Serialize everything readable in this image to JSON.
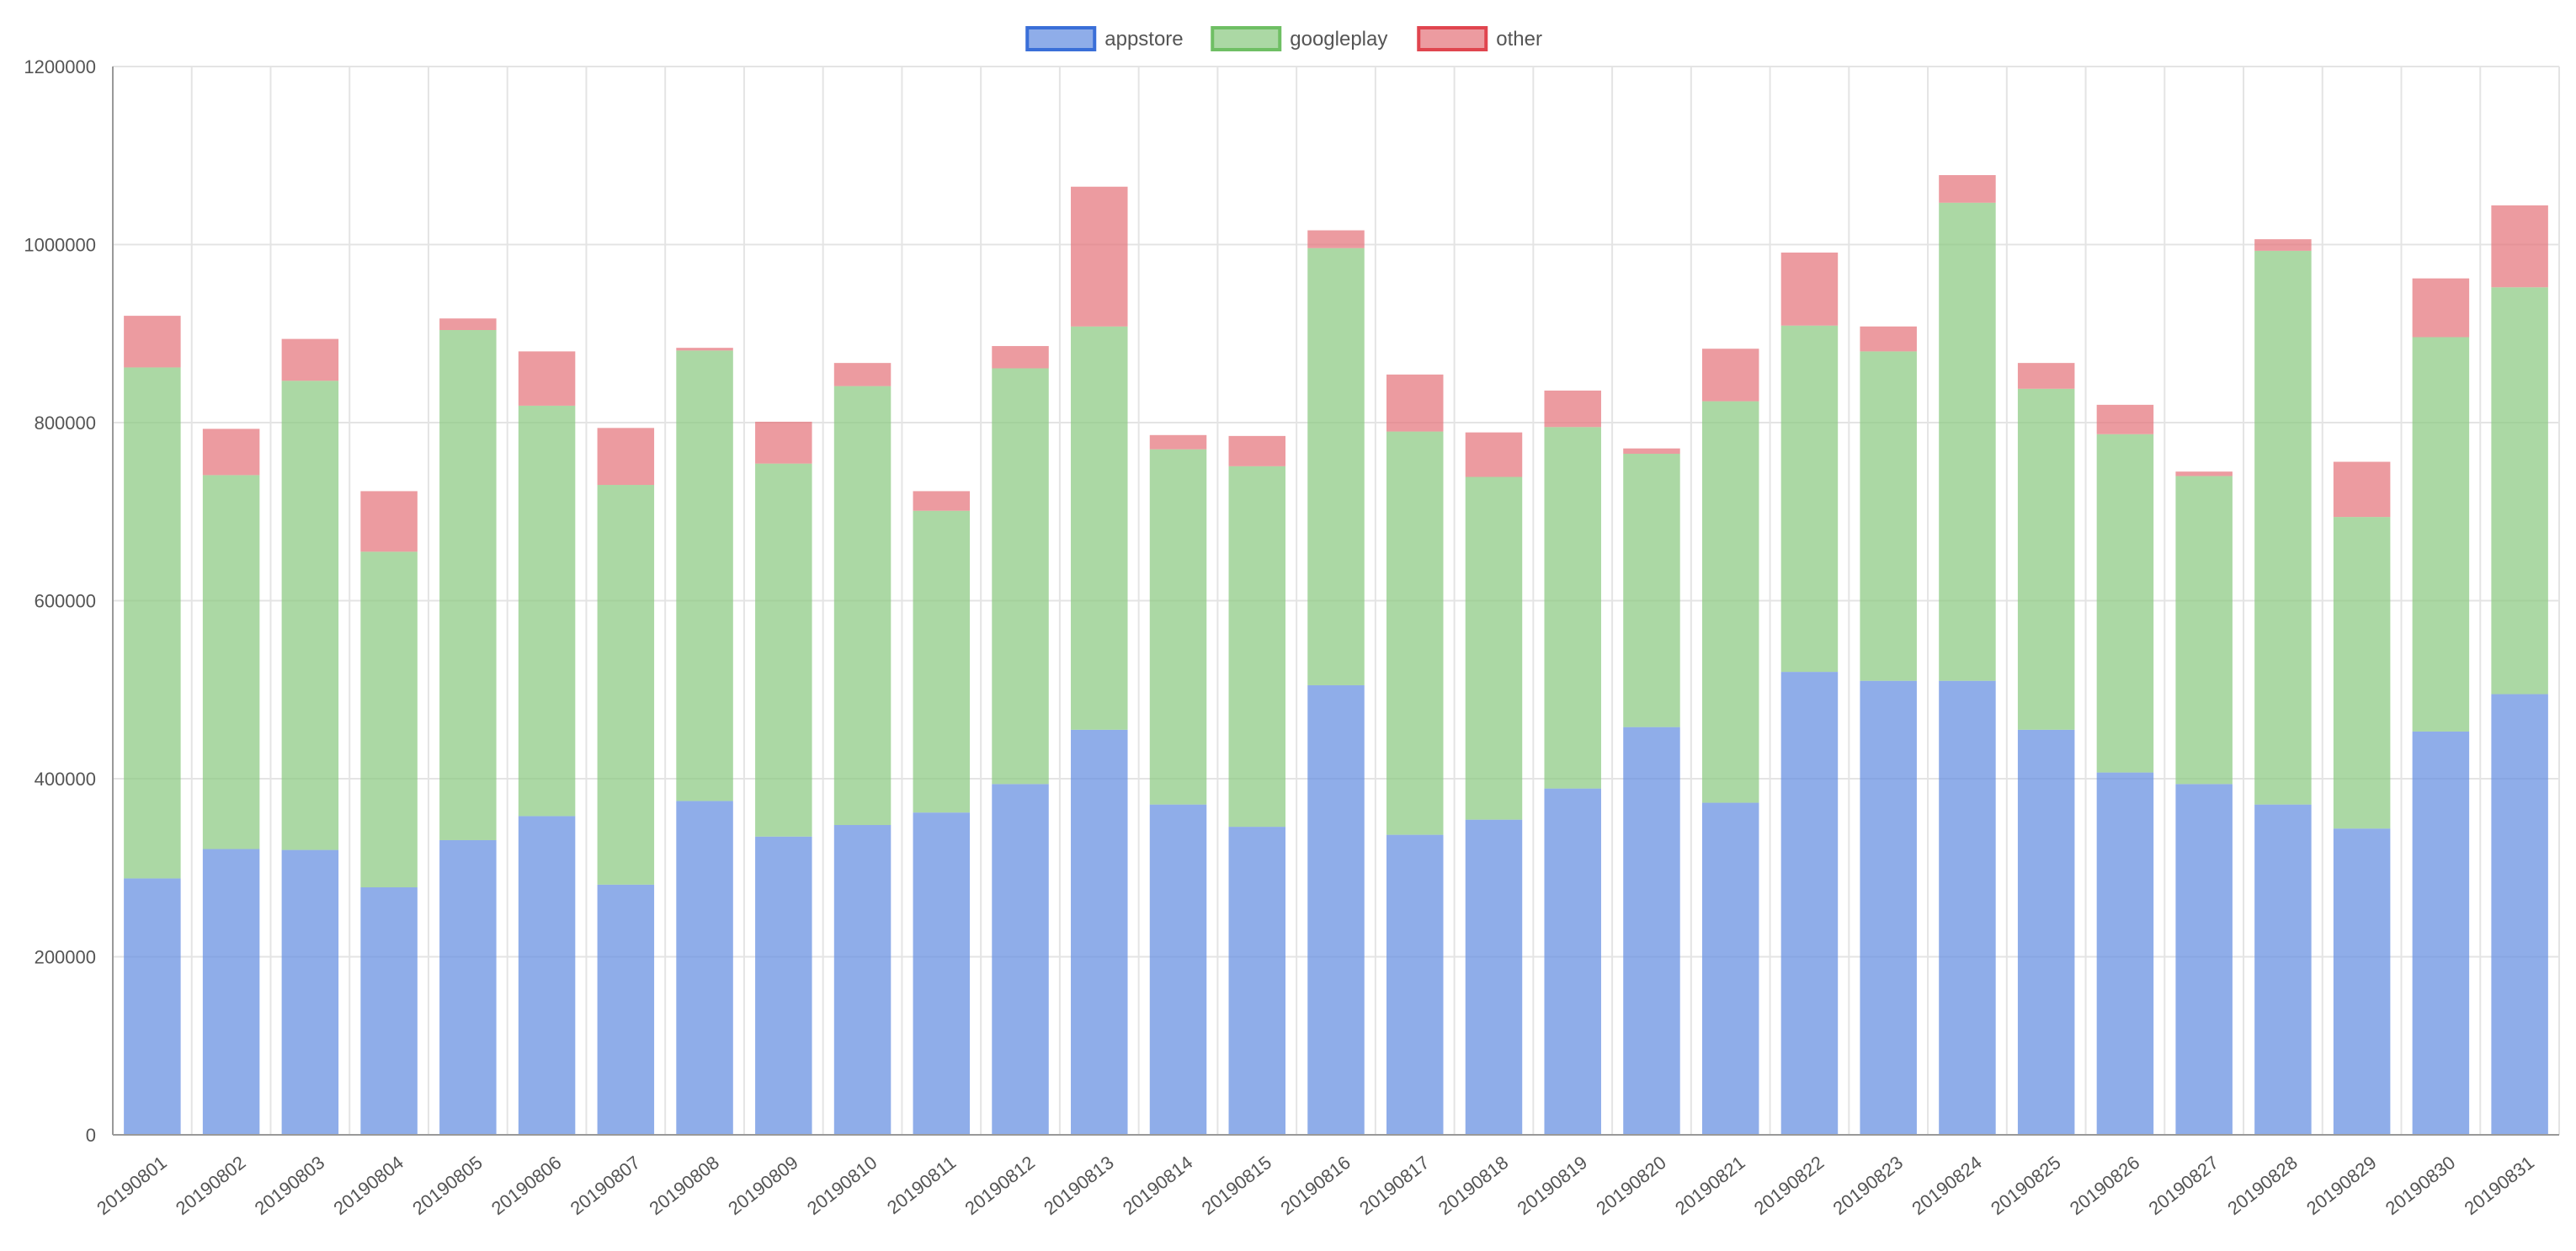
{
  "chart_data": {
    "type": "bar",
    "stacked": true,
    "grid": true,
    "legend_position": "top-center",
    "ylim": [
      0,
      1200000
    ],
    "yticks": [
      "0",
      "200000",
      "400000",
      "600000",
      "800000",
      "1000000",
      "1200000"
    ],
    "categories": [
      "20190801",
      "20190802",
      "20190803",
      "20190804",
      "20190805",
      "20190806",
      "20190807",
      "20190808",
      "20190809",
      "20190810",
      "20190811",
      "20190812",
      "20190813",
      "20190814",
      "20190815",
      "20190816",
      "20190817",
      "20190818",
      "20190819",
      "20190820",
      "20190821",
      "20190822",
      "20190823",
      "20190824",
      "20190825",
      "20190826",
      "20190827",
      "20190828",
      "20190829",
      "20190830",
      "20190831"
    ],
    "series": [
      {
        "name": "appstore",
        "color": "#6a91e2",
        "border_color": "#3a6fd8",
        "values": [
          288000,
          321000,
          320000,
          278000,
          331000,
          358000,
          281000,
          375000,
          335000,
          348000,
          362000,
          394000,
          455000,
          371000,
          346000,
          505000,
          337000,
          354000,
          389000,
          458000,
          373000,
          520000,
          510000,
          510000,
          455000,
          407000,
          394000,
          371000,
          344000,
          453000,
          495000
        ]
      },
      {
        "name": "googleplay",
        "color": "#8fcb85",
        "border_color": "#6fbf64",
        "values": [
          574000,
          420000,
          527000,
          377000,
          573000,
          461000,
          449000,
          506000,
          419000,
          493000,
          339000,
          467000,
          453000,
          399000,
          405000,
          491000,
          453000,
          385000,
          406000,
          307000,
          451000,
          389000,
          370000,
          537000,
          383000,
          380000,
          346000,
          622000,
          350000,
          443000,
          457000
        ]
      },
      {
        "name": "other",
        "color": "#e67a80",
        "border_color": "#e0454f",
        "values": [
          58000,
          52000,
          47000,
          68000,
          13000,
          61000,
          64000,
          3000,
          47000,
          26000,
          22000,
          25000,
          157000,
          16000,
          34000,
          20000,
          64000,
          50000,
          41000,
          6000,
          59000,
          82000,
          28000,
          31000,
          29000,
          33000,
          5000,
          13000,
          62000,
          66000,
          92000
        ]
      }
    ]
  }
}
